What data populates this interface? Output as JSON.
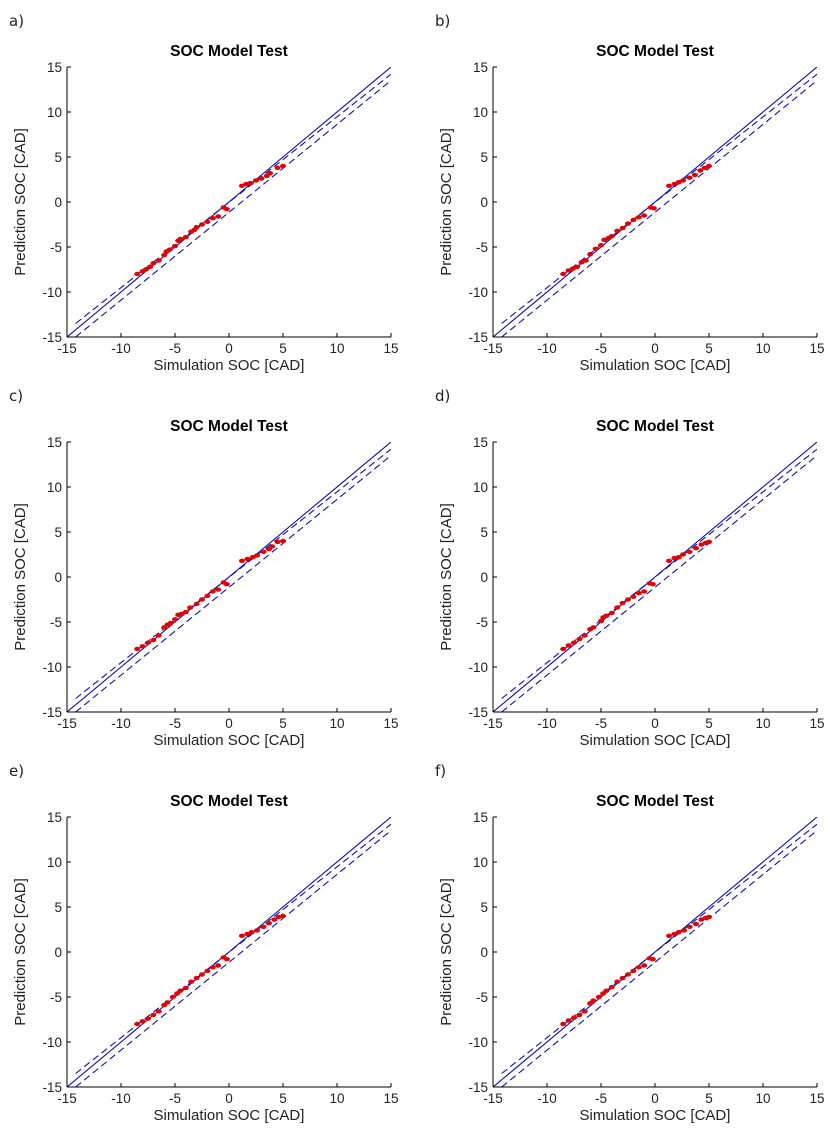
{
  "colors": {
    "reference_line": "#1010a8",
    "points": "#e00000",
    "axes": "#000000",
    "text": "#222222"
  },
  "chart_data": [
    {
      "panel": "a)",
      "type": "scatter",
      "title": "SOC Model Test",
      "xlabel": "Simulation SOC [CAD]",
      "ylabel": "Prediction SOC [CAD]",
      "xlim": [
        -15,
        15
      ],
      "ylim": [
        -15,
        15
      ],
      "xticks": [
        -15,
        -10,
        -5,
        0,
        5,
        10,
        15
      ],
      "yticks": [
        -15,
        -10,
        -5,
        0,
        5,
        10,
        15
      ],
      "grid": false,
      "lines": [
        {
          "style": "solid",
          "x": [
            -15,
            15
          ],
          "y": [
            -15,
            15
          ]
        },
        {
          "style": "dashed",
          "x": [
            -14.2,
            15
          ],
          "y": [
            -13.5,
            14.2
          ]
        },
        {
          "style": "dashed",
          "x": [
            -14.2,
            15
          ],
          "y": [
            -15,
            13.5
          ]
        }
      ],
      "series": [
        {
          "marker": "dot",
          "points": [
            [
              -8.5,
              -8
            ],
            [
              -8,
              -7.7
            ],
            [
              -7.7,
              -7.5
            ],
            [
              -7.3,
              -7.2
            ],
            [
              -7,
              -6.8
            ],
            [
              -6.5,
              -6.5
            ],
            [
              -6,
              -5.9
            ],
            [
              -5.8,
              -5.5
            ],
            [
              -5.5,
              -5.3
            ],
            [
              -5,
              -4.9
            ],
            [
              -4.7,
              -4.3
            ],
            [
              -4.5,
              -4.1
            ],
            [
              -4,
              -3.9
            ],
            [
              -3.5,
              -3.3
            ],
            [
              -3.2,
              -3.1
            ],
            [
              -3,
              -2.8
            ],
            [
              -2.5,
              -2.5
            ],
            [
              -2,
              -2.2
            ],
            [
              -1.5,
              -1.8
            ],
            [
              -1,
              -1.6
            ],
            [
              -0.5,
              -0.6
            ],
            [
              -0.2,
              -0.8
            ],
            [
              1.2,
              1.8
            ],
            [
              1.6,
              2
            ],
            [
              2,
              2.1
            ],
            [
              2.5,
              2.4
            ],
            [
              3,
              2.6
            ],
            [
              3.5,
              2.9
            ],
            [
              3.8,
              3.2
            ],
            [
              4.5,
              3.8
            ],
            [
              5,
              4
            ]
          ]
        }
      ]
    },
    {
      "panel": "b)",
      "type": "scatter",
      "title": "SOC Model Test",
      "xlabel": "Simulation SOC [CAD]",
      "ylabel": "Prediction SOC [CAD]",
      "xlim": [
        -15,
        15
      ],
      "ylim": [
        -15,
        15
      ],
      "xticks": [
        -15,
        -10,
        -5,
        0,
        5,
        10,
        15
      ],
      "yticks": [
        -15,
        -10,
        -5,
        0,
        5,
        10,
        15
      ],
      "grid": false,
      "lines": [
        {
          "style": "solid",
          "x": [
            -15,
            15
          ],
          "y": [
            -15,
            15
          ]
        },
        {
          "style": "dashed",
          "x": [
            -14.2,
            15
          ],
          "y": [
            -13.5,
            14.2
          ]
        },
        {
          "style": "dashed",
          "x": [
            -14.2,
            15
          ],
          "y": [
            -15,
            13.5
          ]
        }
      ],
      "series": [
        {
          "marker": "dot",
          "points": [
            [
              -8.5,
              -8
            ],
            [
              -8,
              -7.6
            ],
            [
              -7.6,
              -7.4
            ],
            [
              -7.2,
              -7.2
            ],
            [
              -6.8,
              -6.7
            ],
            [
              -6.4,
              -6.5
            ],
            [
              -6,
              -5.8
            ],
            [
              -5.5,
              -5.2
            ],
            [
              -5,
              -4.8
            ],
            [
              -4.7,
              -4.2
            ],
            [
              -4.3,
              -4
            ],
            [
              -4,
              -3.8
            ],
            [
              -3.5,
              -3.2
            ],
            [
              -3,
              -2.9
            ],
            [
              -2.5,
              -2.4
            ],
            [
              -2,
              -2
            ],
            [
              -1.5,
              -1.7
            ],
            [
              -1,
              -1.5
            ],
            [
              -0.4,
              -0.6
            ],
            [
              -0.1,
              -0.7
            ],
            [
              1.3,
              1.8
            ],
            [
              1.8,
              2
            ],
            [
              2.2,
              2.2
            ],
            [
              2.6,
              2.4
            ],
            [
              3.2,
              2.7
            ],
            [
              3.7,
              3
            ],
            [
              4.2,
              3.5
            ],
            [
              4.6,
              3.8
            ],
            [
              5,
              4
            ]
          ]
        }
      ]
    },
    {
      "panel": "c)",
      "type": "scatter",
      "title": "SOC Model Test",
      "xlabel": "Simulation SOC [CAD]",
      "ylabel": "Prediction SOC [CAD]",
      "xlim": [
        -15,
        15
      ],
      "ylim": [
        -15,
        15
      ],
      "xticks": [
        -15,
        -10,
        -5,
        0,
        5,
        10,
        15
      ],
      "yticks": [
        -15,
        -10,
        -5,
        0,
        5,
        10,
        15
      ],
      "grid": false,
      "lines": [
        {
          "style": "solid",
          "x": [
            -15,
            15
          ],
          "y": [
            -15,
            15
          ]
        },
        {
          "style": "dashed",
          "x": [
            -14.2,
            15
          ],
          "y": [
            -13.5,
            14.2
          ]
        },
        {
          "style": "dashed",
          "x": [
            -14.2,
            15
          ],
          "y": [
            -15,
            13.5
          ]
        }
      ],
      "series": [
        {
          "marker": "dot",
          "points": [
            [
              -8.5,
              -8
            ],
            [
              -8,
              -7.7
            ],
            [
              -7.5,
              -7.3
            ],
            [
              -7,
              -7
            ],
            [
              -6.5,
              -6.5
            ],
            [
              -6,
              -5.6
            ],
            [
              -5.7,
              -5.3
            ],
            [
              -5.4,
              -5.1
            ],
            [
              -5,
              -4.7
            ],
            [
              -4.7,
              -4.2
            ],
            [
              -4.4,
              -4.1
            ],
            [
              -4,
              -3.9
            ],
            [
              -3.6,
              -3.4
            ],
            [
              -3,
              -3
            ],
            [
              -2.5,
              -2.5
            ],
            [
              -2,
              -2.1
            ],
            [
              -1.5,
              -1.6
            ],
            [
              -1,
              -1.4
            ],
            [
              -0.5,
              -0.6
            ],
            [
              -0.2,
              -0.8
            ],
            [
              1.2,
              1.8
            ],
            [
              1.7,
              2
            ],
            [
              2.2,
              2.2
            ],
            [
              2.6,
              2.4
            ],
            [
              3.2,
              2.8
            ],
            [
              3.7,
              3.1
            ],
            [
              4,
              3.4
            ],
            [
              4.5,
              3.9
            ],
            [
              5,
              4
            ]
          ]
        }
      ]
    },
    {
      "panel": "d)",
      "type": "scatter",
      "title": "SOC Model Test",
      "xlabel": "Simulation SOC [CAD]",
      "ylabel": "Prediction SOC [CAD]",
      "xlim": [
        -15,
        15
      ],
      "ylim": [
        -15,
        15
      ],
      "xticks": [
        -15,
        -10,
        -5,
        0,
        5,
        10,
        15
      ],
      "yticks": [
        -15,
        -10,
        -5,
        0,
        5,
        10,
        15
      ],
      "grid": false,
      "lines": [
        {
          "style": "solid",
          "x": [
            -15,
            15
          ],
          "y": [
            -15,
            15
          ]
        },
        {
          "style": "dashed",
          "x": [
            -14.2,
            15
          ],
          "y": [
            -13.5,
            14.2
          ]
        },
        {
          "style": "dashed",
          "x": [
            -14.2,
            15
          ],
          "y": [
            -15,
            13.5
          ]
        }
      ],
      "series": [
        {
          "marker": "dot",
          "points": [
            [
              -8.5,
              -8
            ],
            [
              -8,
              -7.6
            ],
            [
              -7.5,
              -7.3
            ],
            [
              -7,
              -6.9
            ],
            [
              -6.5,
              -6.5
            ],
            [
              -6,
              -5.8
            ],
            [
              -5.7,
              -5.6
            ],
            [
              -5,
              -4.9
            ],
            [
              -4.8,
              -4.5
            ],
            [
              -4.5,
              -4.3
            ],
            [
              -4,
              -4
            ],
            [
              -3.5,
              -3.4
            ],
            [
              -3,
              -2.9
            ],
            [
              -2.5,
              -2.5
            ],
            [
              -2,
              -2.2
            ],
            [
              -1.5,
              -1.8
            ],
            [
              -1,
              -1.6
            ],
            [
              -0.5,
              -0.7
            ],
            [
              -0.2,
              -0.8
            ],
            [
              1.3,
              1.8
            ],
            [
              1.8,
              2.1
            ],
            [
              2.2,
              2.2
            ],
            [
              2.6,
              2.5
            ],
            [
              3.2,
              2.8
            ],
            [
              3.8,
              3.2
            ],
            [
              4.3,
              3.6
            ],
            [
              4.7,
              3.8
            ],
            [
              5,
              3.9
            ]
          ]
        }
      ]
    },
    {
      "panel": "e)",
      "type": "scatter",
      "title": "SOC Model Test",
      "xlabel": "Simulation SOC [CAD]",
      "ylabel": "Prediction SOC [CAD]",
      "xlim": [
        -15,
        15
      ],
      "ylim": [
        -15,
        15
      ],
      "xticks": [
        -15,
        -10,
        -5,
        0,
        5,
        10,
        15
      ],
      "yticks": [
        -15,
        -10,
        -5,
        0,
        5,
        10,
        15
      ],
      "grid": false,
      "lines": [
        {
          "style": "solid",
          "x": [
            -15,
            15
          ],
          "y": [
            -15,
            15
          ]
        },
        {
          "style": "dashed",
          "x": [
            -14.2,
            15
          ],
          "y": [
            -13.5,
            14.2
          ]
        },
        {
          "style": "dashed",
          "x": [
            -14.2,
            15
          ],
          "y": [
            -15,
            13.5
          ]
        }
      ],
      "series": [
        {
          "marker": "dot",
          "points": [
            [
              -8.5,
              -8
            ],
            [
              -8,
              -7.7
            ],
            [
              -7.5,
              -7.4
            ],
            [
              -7,
              -7
            ],
            [
              -6.5,
              -6.6
            ],
            [
              -6,
              -5.9
            ],
            [
              -5.7,
              -5.6
            ],
            [
              -5.2,
              -5
            ],
            [
              -4.8,
              -4.6
            ],
            [
              -4.5,
              -4.3
            ],
            [
              -4,
              -4
            ],
            [
              -3.5,
              -3.3
            ],
            [
              -3,
              -2.9
            ],
            [
              -2.5,
              -2.5
            ],
            [
              -2,
              -2.1
            ],
            [
              -1.5,
              -1.7
            ],
            [
              -1,
              -1.5
            ],
            [
              -0.5,
              -0.6
            ],
            [
              -0.2,
              -0.8
            ],
            [
              1.2,
              1.8
            ],
            [
              1.7,
              2
            ],
            [
              2.1,
              2.2
            ],
            [
              2.6,
              2.4
            ],
            [
              3.2,
              2.8
            ],
            [
              3.7,
              3.2
            ],
            [
              4.2,
              3.6
            ],
            [
              4.6,
              3.9
            ],
            [
              5,
              4
            ]
          ]
        }
      ]
    },
    {
      "panel": "f)",
      "type": "scatter",
      "title": "SOC Model Test",
      "xlabel": "Simulation SOC [CAD]",
      "ylabel": "Prediction SOC [CAD]",
      "xlim": [
        -15,
        15
      ],
      "ylim": [
        -15,
        15
      ],
      "xticks": [
        -15,
        -10,
        -5,
        0,
        5,
        10,
        15
      ],
      "yticks": [
        -15,
        -10,
        -5,
        0,
        5,
        10,
        15
      ],
      "grid": false,
      "lines": [
        {
          "style": "solid",
          "x": [
            -15,
            15
          ],
          "y": [
            -15,
            15
          ]
        },
        {
          "style": "dashed",
          "x": [
            -14.2,
            15
          ],
          "y": [
            -13.5,
            14.2
          ]
        },
        {
          "style": "dashed",
          "x": [
            -14.2,
            15
          ],
          "y": [
            -15,
            13.5
          ]
        }
      ],
      "series": [
        {
          "marker": "dot",
          "points": [
            [
              -8.5,
              -8
            ],
            [
              -8,
              -7.6
            ],
            [
              -7.5,
              -7.3
            ],
            [
              -7,
              -7
            ],
            [
              -6.5,
              -6.6
            ],
            [
              -6,
              -5.7
            ],
            [
              -5.7,
              -5.4
            ],
            [
              -5.2,
              -5
            ],
            [
              -4.8,
              -4.6
            ],
            [
              -4.5,
              -4.3
            ],
            [
              -4,
              -3.9
            ],
            [
              -3.5,
              -3.3
            ],
            [
              -3,
              -2.9
            ],
            [
              -2.5,
              -2.5
            ],
            [
              -2,
              -2.1
            ],
            [
              -1.5,
              -1.7
            ],
            [
              -1,
              -1.5
            ],
            [
              -0.5,
              -0.7
            ],
            [
              -0.2,
              -0.8
            ],
            [
              1.3,
              1.8
            ],
            [
              1.8,
              2
            ],
            [
              2.2,
              2.2
            ],
            [
              2.7,
              2.4
            ],
            [
              3.2,
              2.8
            ],
            [
              3.8,
              3.1
            ],
            [
              4.3,
              3.6
            ],
            [
              4.7,
              3.8
            ],
            [
              5,
              3.9
            ]
          ]
        }
      ]
    }
  ]
}
